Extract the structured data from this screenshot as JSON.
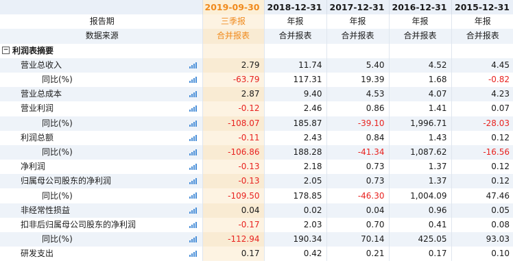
{
  "header": {
    "periods": [
      "2019-09-30",
      "2018-12-31",
      "2017-12-31",
      "2016-12-31",
      "2015-12-31"
    ]
  },
  "meta_rows": [
    {
      "label": "报告期",
      "values": [
        "三季报",
        "年报",
        "年报",
        "年报",
        "年报"
      ]
    },
    {
      "label": "数据来源",
      "values": [
        "合并报表",
        "合并报表",
        "合并报表",
        "合并报表",
        "合并报表"
      ]
    }
  ],
  "section": {
    "toggle": "−",
    "label": "利润表摘要"
  },
  "rows": [
    {
      "label": "营业总收入",
      "indent": 1,
      "values": [
        "2.79",
        "11.74",
        "5.40",
        "4.52",
        "4.45"
      ]
    },
    {
      "label": "同比(%)",
      "indent": 2,
      "values": [
        "-63.79",
        "117.31",
        "19.39",
        "1.68",
        "-0.82"
      ]
    },
    {
      "label": "营业总成本",
      "indent": 1,
      "values": [
        "2.87",
        "9.40",
        "4.53",
        "4.07",
        "4.23"
      ]
    },
    {
      "label": "营业利润",
      "indent": 1,
      "values": [
        "-0.12",
        "2.46",
        "0.86",
        "1.41",
        "0.07"
      ]
    },
    {
      "label": "同比(%)",
      "indent": 2,
      "values": [
        "-108.07",
        "185.87",
        "-39.10",
        "1,996.71",
        "-28.03"
      ]
    },
    {
      "label": "利润总额",
      "indent": 1,
      "values": [
        "-0.11",
        "2.43",
        "0.84",
        "1.43",
        "0.12"
      ]
    },
    {
      "label": "同比(%)",
      "indent": 2,
      "values": [
        "-106.86",
        "188.28",
        "-41.34",
        "1,087.62",
        "-16.56"
      ]
    },
    {
      "label": "净利润",
      "indent": 1,
      "values": [
        "-0.13",
        "2.18",
        "0.73",
        "1.37",
        "0.12"
      ]
    },
    {
      "label": "归属母公司股东的净利润",
      "indent": 1,
      "values": [
        "-0.13",
        "2.05",
        "0.73",
        "1.37",
        "0.12"
      ]
    },
    {
      "label": "同比(%)",
      "indent": 2,
      "values": [
        "-109.50",
        "178.85",
        "-46.30",
        "1,004.09",
        "47.46"
      ]
    },
    {
      "label": "非经常性损益",
      "indent": 1,
      "values": [
        "0.04",
        "0.02",
        "0.04",
        "0.96",
        "0.05"
      ]
    },
    {
      "label": "扣非后归属母公司股东的净利润",
      "indent": 1,
      "values": [
        "-0.17",
        "2.03",
        "0.70",
        "0.41",
        "0.08"
      ]
    },
    {
      "label": "同比(%)",
      "indent": 2,
      "values": [
        "-112.94",
        "190.34",
        "70.14",
        "425.05",
        "93.03"
      ]
    },
    {
      "label": "研发支出",
      "indent": 1,
      "values": [
        "0.17",
        "0.42",
        "0.21",
        "0.17",
        "0.10"
      ]
    }
  ],
  "icons": {
    "row_chart": "bar-chart-icon",
    "section_toggle": "collapse-icon"
  },
  "colors": {
    "accent": "#f08a1c",
    "negative": "#e8221f",
    "icon": "#4a8fd8",
    "header_bg": "#eaf0f8",
    "stripe_bg": "#eef3f9"
  }
}
